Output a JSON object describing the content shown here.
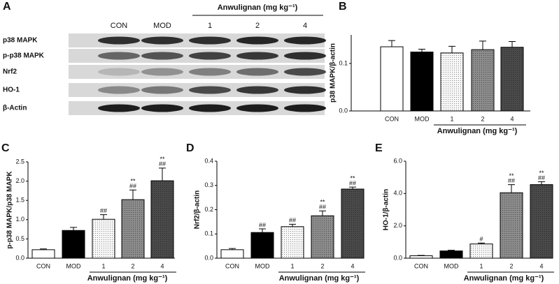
{
  "blot": {
    "panel": "A",
    "group_label": "Anwulignan (mg kg⁻¹)",
    "columns": [
      "CON",
      "MOD",
      "1",
      "2",
      "4"
    ],
    "rows": [
      "p38 MAPK",
      "p-p38 MAPK",
      "Nrf2",
      "HO-1",
      "β-Actin"
    ]
  },
  "chart_data": [
    {
      "type": "bar",
      "panel": "B",
      "ylabel": "p38 MAPK/β-actin",
      "group_label": "Anwulignan (mg kg⁻¹)",
      "categories": [
        "CON",
        "MOD",
        "1",
        "2",
        "4"
      ],
      "values": [
        0.135,
        0.124,
        0.122,
        0.129,
        0.134
      ],
      "errors": [
        0.013,
        0.006,
        0.014,
        0.018,
        0.012
      ],
      "colors": [
        "#ffffff",
        "#000000",
        "#f7f7f7",
        "#8c8c8c",
        "#4a4a4a"
      ],
      "patterns": [
        "none",
        "none",
        "dots",
        "dots",
        "dots"
      ],
      "ylim": [
        0,
        0.16
      ],
      "yticks": [
        {
          "value": 0,
          "label": "0.0"
        },
        0.1
      ]
    },
    {
      "type": "bar",
      "panel": "C",
      "ylabel": "p-p38 MAPK/p38 MAPK",
      "group_label": "Anwulignan (mg kg⁻¹)",
      "categories": [
        "CON",
        "MOD",
        "1",
        "2",
        "4"
      ],
      "values": [
        0.22,
        0.72,
        1.01,
        1.52,
        2.01
      ],
      "errors": [
        0.02,
        0.08,
        0.12,
        0.25,
        0.33
      ],
      "colors": [
        "#ffffff",
        "#000000",
        "#f7f7f7",
        "#8c8c8c",
        "#4a4a4a"
      ],
      "patterns": [
        "none",
        "none",
        "dots",
        "dots",
        "dots"
      ],
      "significance": [
        null,
        null,
        [
          "##"
        ],
        [
          "**",
          "##"
        ],
        [
          "**",
          "##"
        ]
      ],
      "ylim": [
        0,
        2.5
      ],
      "yticks": [
        {
          "value": 0,
          "label": "0.0"
        },
        0.5,
        {
          "value": 1,
          "label": "1.0"
        },
        1.5,
        {
          "value": 2,
          "label": "2.0"
        },
        2.5
      ]
    },
    {
      "type": "bar",
      "panel": "D",
      "ylabel": "Nrf2/β-actin",
      "group_label": "Anwulignan (mg kg⁻¹)",
      "categories": [
        "CON",
        "MOD",
        "1",
        "2",
        "4"
      ],
      "values": [
        0.035,
        0.106,
        0.13,
        0.175,
        0.285
      ],
      "errors": [
        0.005,
        0.015,
        0.01,
        0.02,
        0.008
      ],
      "colors": [
        "#ffffff",
        "#000000",
        "#f7f7f7",
        "#8c8c8c",
        "#4a4a4a"
      ],
      "patterns": [
        "none",
        "none",
        "dots",
        "dots",
        "dots"
      ],
      "significance": [
        null,
        [
          "##"
        ],
        [
          "##"
        ],
        [
          "**",
          "##"
        ],
        [
          "**",
          "##"
        ]
      ],
      "ylim": [
        0,
        0.4
      ],
      "yticks": [
        {
          "value": 0,
          "label": "0.0"
        },
        0.1,
        0.2,
        0.3,
        0.4
      ]
    },
    {
      "type": "bar",
      "panel": "E",
      "ylabel": "HO-1/β-actin",
      "group_label": "Anwulignan (mg kg⁻¹)",
      "categories": [
        "CON",
        "MOD",
        "1",
        "2",
        "4"
      ],
      "values": [
        0.15,
        0.45,
        0.88,
        4.05,
        4.55
      ],
      "errors": [
        0.02,
        0.04,
        0.06,
        0.5,
        0.18
      ],
      "colors": [
        "#ffffff",
        "#000000",
        "#f7f7f7",
        "#8c8c8c",
        "#4a4a4a"
      ],
      "patterns": [
        "none",
        "none",
        "dots",
        "dots",
        "dots"
      ],
      "significance": [
        null,
        null,
        [
          "#"
        ],
        [
          "**",
          "##"
        ],
        [
          "**",
          "##"
        ]
      ],
      "ylim": [
        0,
        6
      ],
      "yticks": [
        {
          "value": 0,
          "label": "0.0"
        },
        {
          "value": 2,
          "label": "2.0"
        },
        {
          "value": 4,
          "label": "4.0"
        },
        {
          "value": 6,
          "label": "6.0"
        }
      ]
    }
  ]
}
